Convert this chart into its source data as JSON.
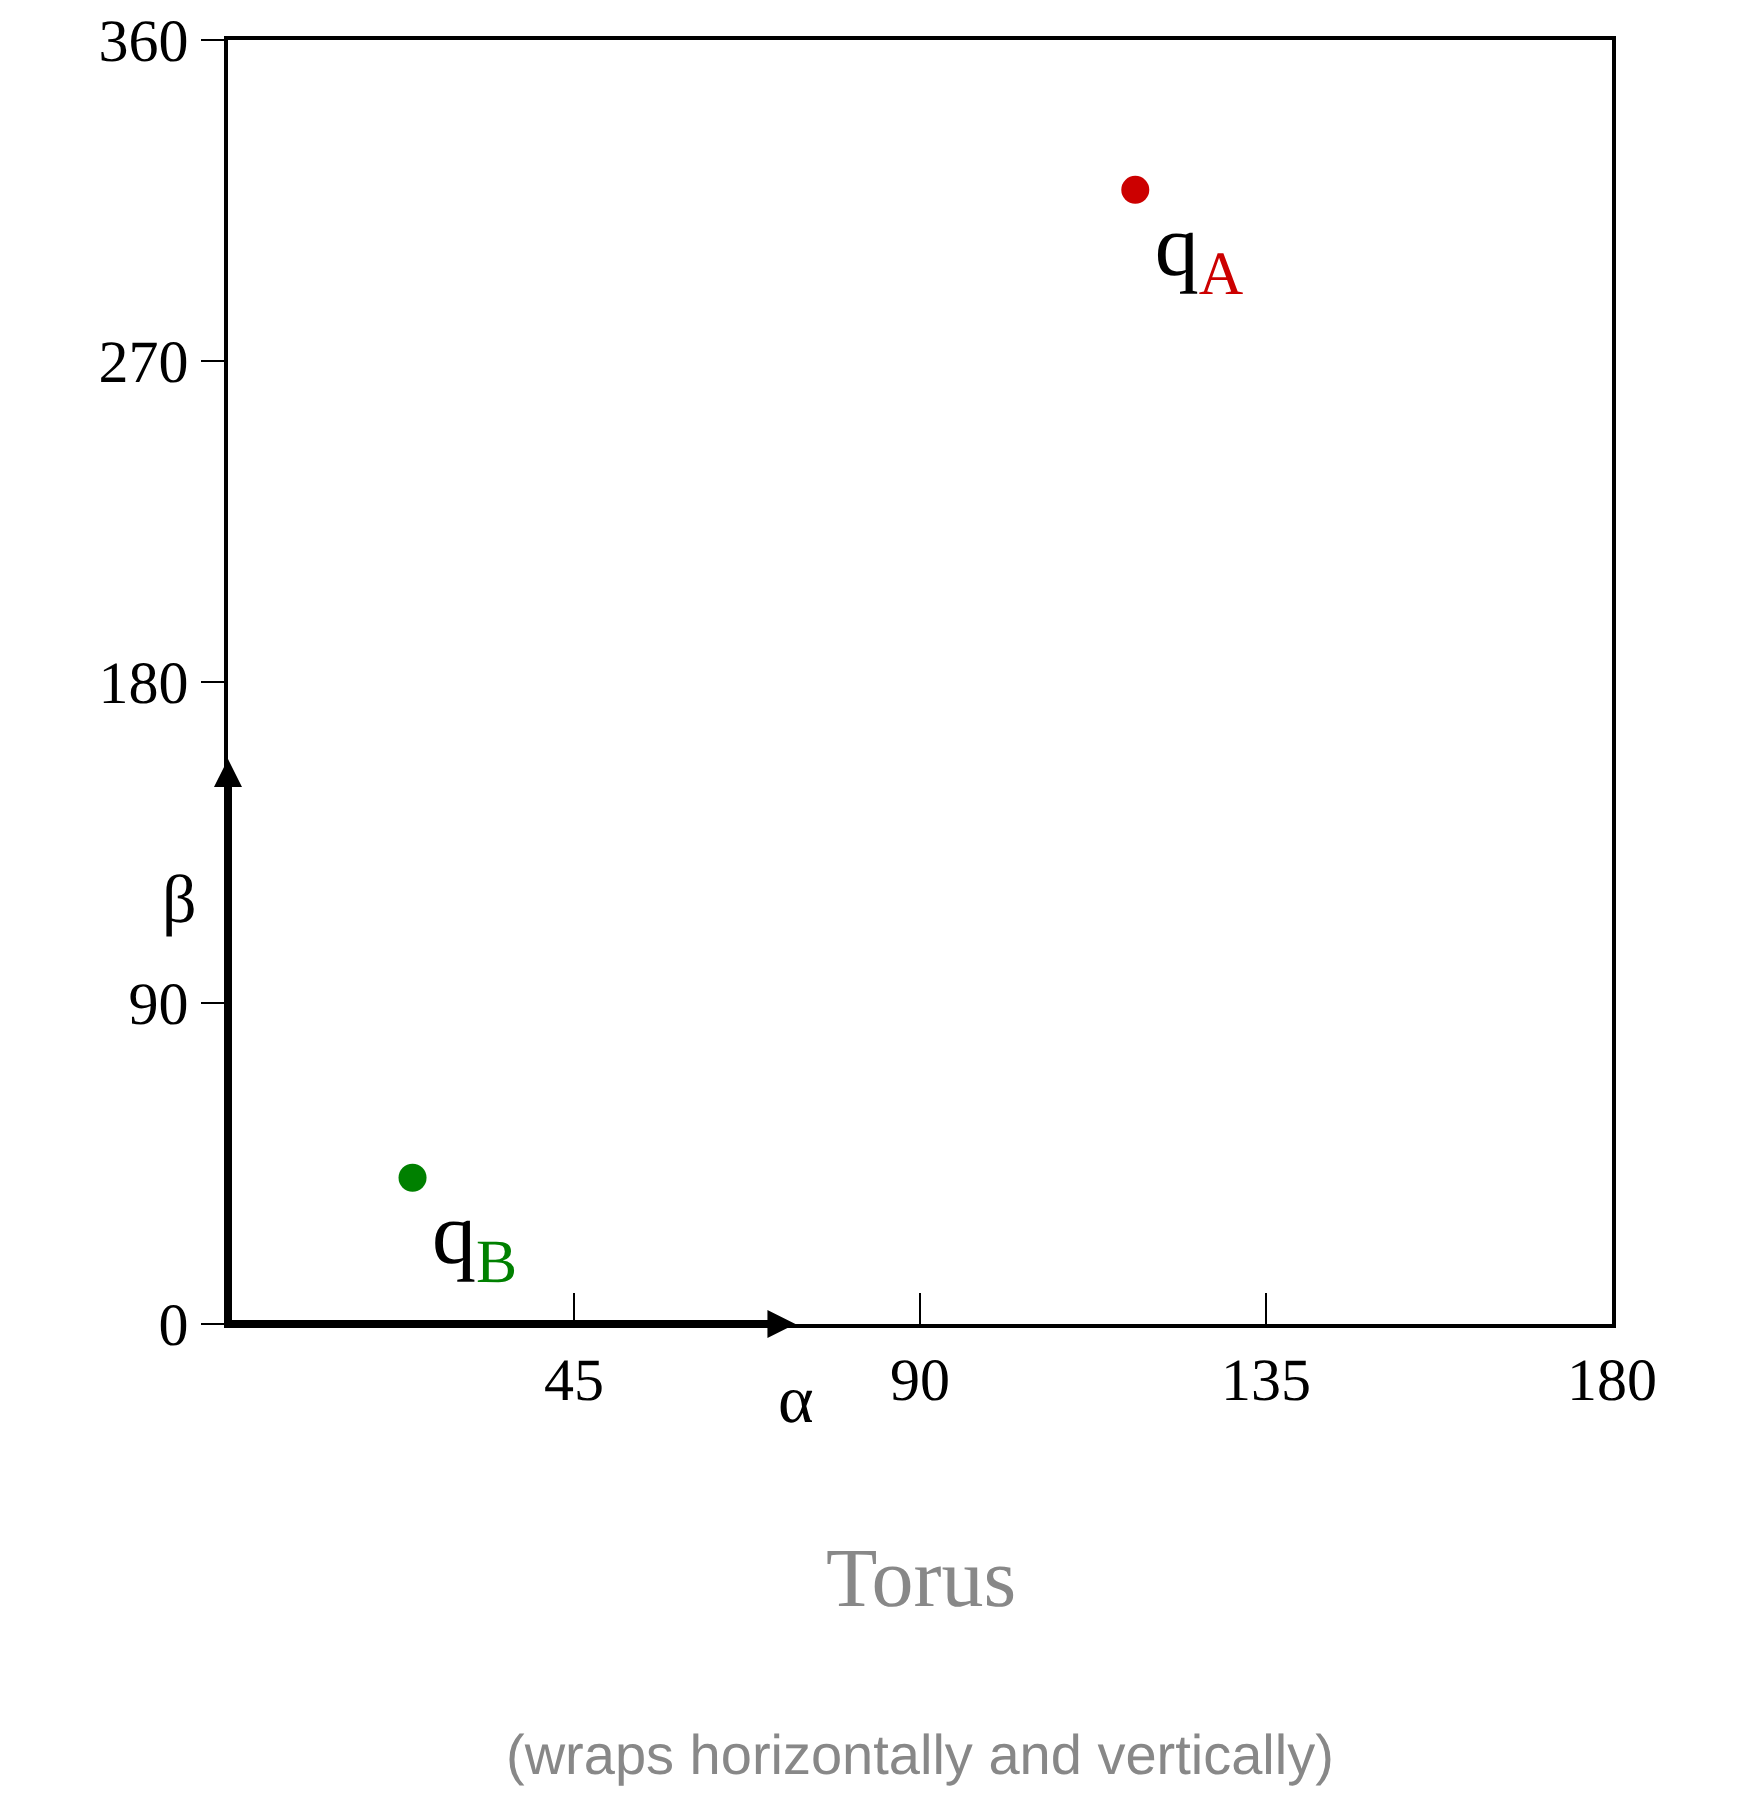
{
  "chart_data": {
    "type": "scatter",
    "title": "Torus",
    "subtitle": "(wraps horizontally and vertically)",
    "xlabel": "α",
    "ylabel": "β",
    "xlim": [
      0,
      180
    ],
    "xticks": [
      {
        "value": 0,
        "label": null
      },
      45,
      90,
      135,
      180
    ],
    "ylim": [
      0,
      360
    ],
    "yticks": [
      0,
      90,
      180,
      270,
      360
    ],
    "grid": false,
    "legend": false,
    "marker": "circle",
    "series": [
      {
        "name": "q$_{A}$",
        "color": "#cc0000",
        "x": [
          118
        ],
        "values": [
          318
        ]
      },
      {
        "name": "q$_{B}$",
        "color": "#008000",
        "x": [
          24
        ],
        "values": [
          41
        ]
      }
    ]
  }
}
